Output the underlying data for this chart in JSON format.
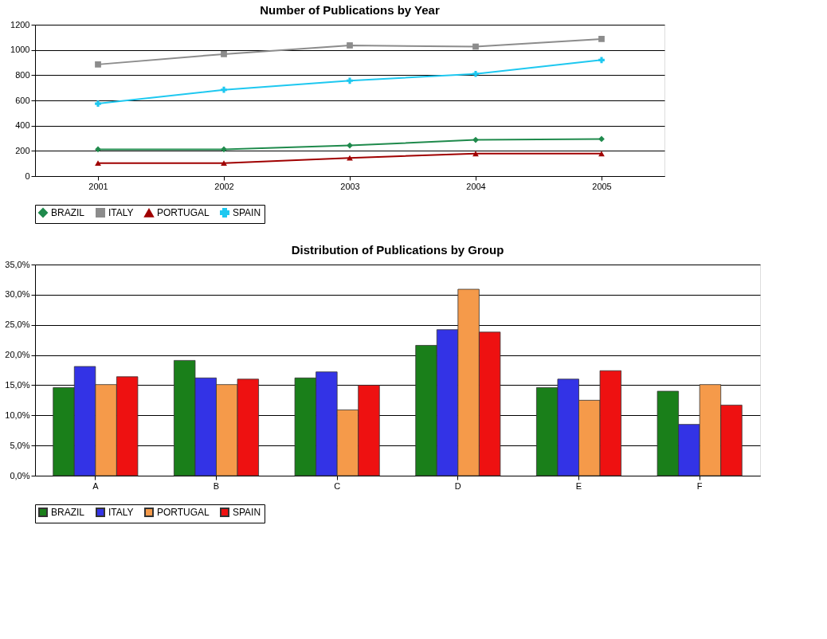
{
  "chart_data": [
    {
      "type": "line",
      "title": "Number of Publications by Year",
      "categories": [
        "2001",
        "2002",
        "2003",
        "2004",
        "2005"
      ],
      "ylim": [
        0,
        1200
      ],
      "yticks": [
        0,
        200,
        400,
        600,
        800,
        1000,
        1200
      ],
      "grid": "y",
      "legend": "bottom",
      "line_style": "solid",
      "series": [
        {
          "name": "BRAZIL",
          "color": "#1f8a4c",
          "marker": "diamond",
          "values": [
            212,
            212,
            243,
            287,
            294
          ]
        },
        {
          "name": "ITALY",
          "color": "#8c8c8c",
          "marker": "square",
          "values": [
            885,
            967,
            1036,
            1026,
            1087
          ]
        },
        {
          "name": "PORTUGAL",
          "color": "#a00000",
          "marker": "triangle",
          "values": [
            103,
            103,
            144,
            178,
            178
          ]
        },
        {
          "name": "SPAIN",
          "color": "#1ec8f0",
          "marker": "cross",
          "values": [
            574,
            684,
            756,
            810,
            920
          ]
        }
      ]
    },
    {
      "type": "bar",
      "title": "Distribution of Publications by Group",
      "categories": [
        "A",
        "B",
        "C",
        "D",
        "E",
        "F"
      ],
      "ylim": [
        0,
        35
      ],
      "yticks": [
        {
          "value": 0,
          "label": "0,0%"
        },
        {
          "value": 5,
          "label": "5,0%"
        },
        {
          "value": 10,
          "label": "10,0%"
        },
        {
          "value": 15,
          "label": "15,0%"
        },
        {
          "value": 20,
          "label": "20,0%"
        },
        {
          "value": 25,
          "label": "25,0%"
        },
        {
          "value": 30,
          "label": "30,0%"
        },
        {
          "value": 35,
          "label": "35,0%"
        }
      ],
      "grid": "y",
      "legend": "bottom",
      "series": [
        {
          "name": "BRAZIL",
          "color": "#1a7f1a",
          "values": [
            14.6,
            19.1,
            16.2,
            21.6,
            14.6,
            14.0
          ]
        },
        {
          "name": "ITALY",
          "color": "#3333e6",
          "values": [
            18.1,
            16.2,
            17.2,
            24.2,
            16.0,
            8.5
          ]
        },
        {
          "name": "PORTUGAL",
          "color": "#f59a4a",
          "values": [
            15.1,
            15.1,
            10.9,
            30.9,
            12.5,
            15.1
          ]
        },
        {
          "name": "SPAIN",
          "color": "#ee1111",
          "values": [
            16.4,
            16.0,
            15.0,
            23.8,
            17.4,
            11.7
          ]
        }
      ]
    }
  ]
}
